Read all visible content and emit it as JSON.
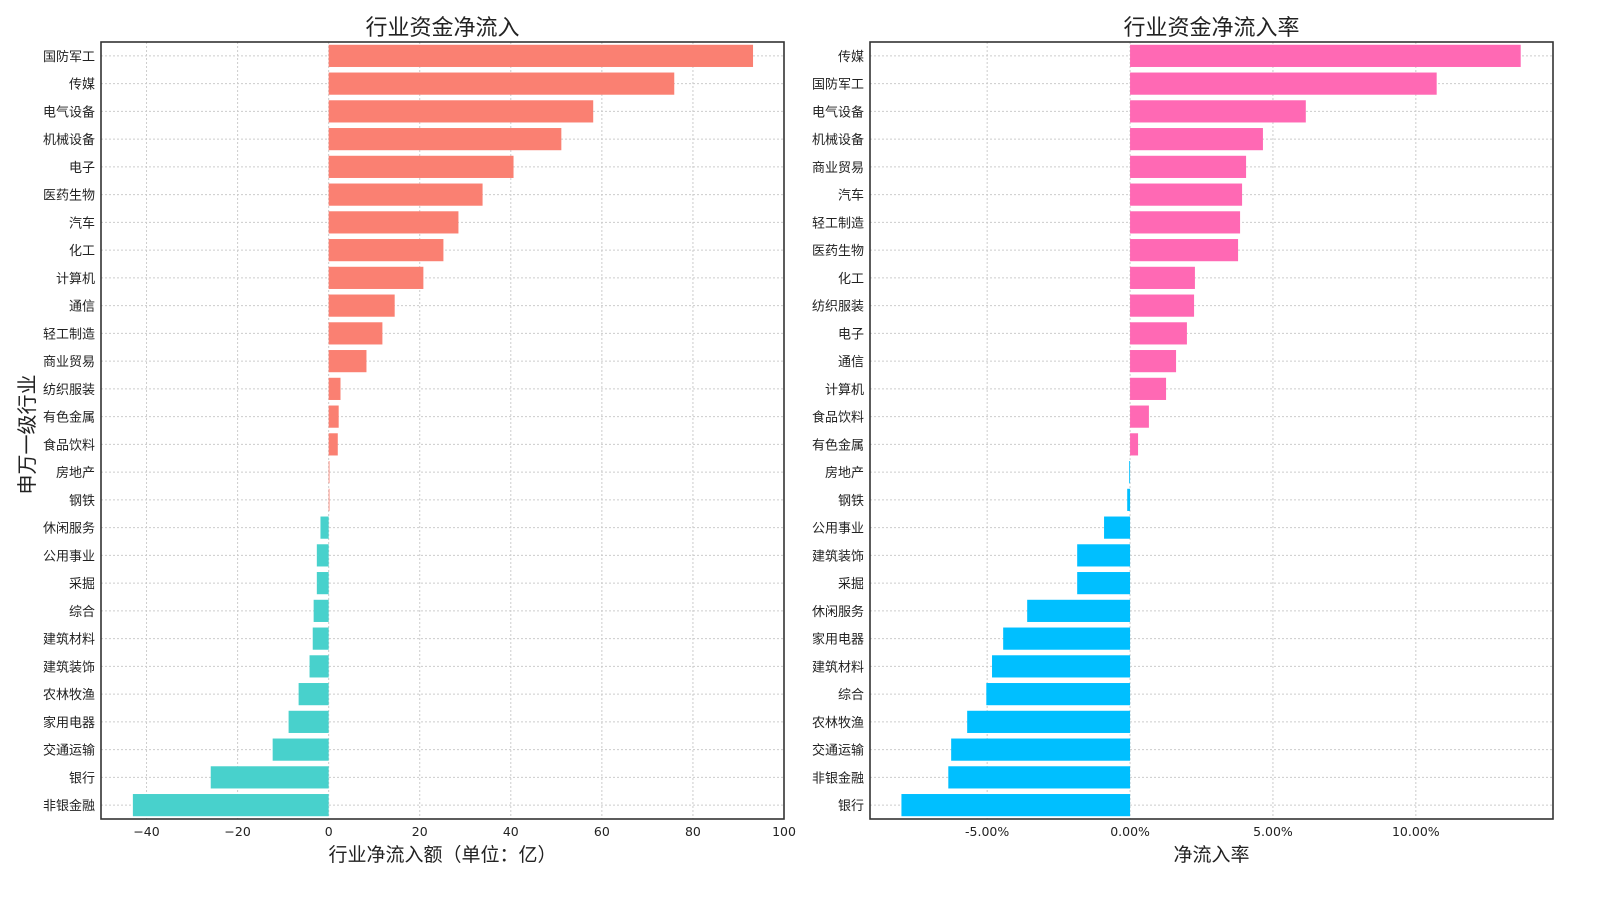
{
  "chart_data": [
    {
      "type": "bar",
      "orientation": "horizontal",
      "title": "行业资金净流入",
      "xlabel": "行业净流入额（单位：亿）",
      "ylabel": "申万一级行业",
      "xlim": [
        -50,
        100
      ],
      "xticks": [
        -40,
        -20,
        0,
        20,
        40,
        60,
        80,
        100
      ],
      "xtick_labels": [
        "−40",
        "−20",
        "0",
        "20",
        "40",
        "60",
        "80",
        "100"
      ],
      "grid": true,
      "positive_color": "#FA8072",
      "negative_color": "#48D1CC",
      "categories": [
        "国防军工",
        "传媒",
        "电气设备",
        "机械设备",
        "电子",
        "医药生物",
        "汽车",
        "化工",
        "计算机",
        "通信",
        "轻工制造",
        "商业贸易",
        "纺织服装",
        "有色金属",
        "食品饮料",
        "房地产",
        "钢铁",
        "休闲服务",
        "公用事业",
        "采掘",
        "综合",
        "建筑材料",
        "建筑装饰",
        "农林牧渔",
        "家用电器",
        "交通运输",
        "银行",
        "非银金融"
      ],
      "values": [
        93.2,
        75.9,
        58.1,
        51.1,
        40.6,
        33.8,
        28.5,
        25.2,
        20.8,
        14.5,
        11.8,
        8.3,
        2.6,
        2.2,
        2.0,
        0.0,
        0.0,
        -1.8,
        -2.6,
        -2.6,
        -3.3,
        -3.5,
        -4.2,
        -6.6,
        -8.8,
        -12.3,
        -25.9,
        -43.0
      ]
    },
    {
      "type": "bar",
      "orientation": "horizontal",
      "title": "行业资金净流入率",
      "xlabel": "净流入率",
      "ylabel": "",
      "xlim": [
        -9.1,
        14.8
      ],
      "xticks": [
        -5,
        0,
        5,
        10
      ],
      "xtick_labels": [
        "-5.00%",
        "0.00%",
        "5.00%",
        "10.00%"
      ],
      "grid": true,
      "positive_color": "#FF69B4",
      "negative_color": "#00BFFF",
      "categories": [
        "传媒",
        "国防军工",
        "电气设备",
        "机械设备",
        "商业贸易",
        "汽车",
        "轻工制造",
        "医药生物",
        "化工",
        "纺织服装",
        "电子",
        "通信",
        "计算机",
        "食品饮料",
        "有色金属",
        "房地产",
        "钢铁",
        "公用事业",
        "建筑装饰",
        "采掘",
        "休闲服务",
        "家用电器",
        "建筑材料",
        "综合",
        "农林牧渔",
        "交通运输",
        "非银金融",
        "银行"
      ],
      "values": [
        13.67,
        10.73,
        6.15,
        4.65,
        4.06,
        3.92,
        3.85,
        3.78,
        2.27,
        2.24,
        1.99,
        1.61,
        1.26,
        0.66,
        0.28,
        -0.03,
        -0.1,
        -0.91,
        -1.85,
        -1.85,
        -3.6,
        -4.44,
        -4.83,
        -5.03,
        -5.7,
        -6.26,
        -6.36,
        -8.0
      ]
    }
  ]
}
